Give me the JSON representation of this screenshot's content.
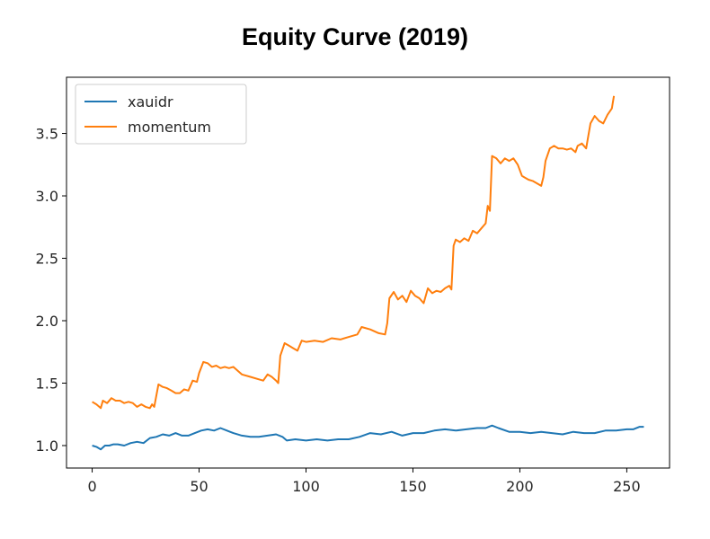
{
  "chart_data": {
    "type": "line",
    "title": "Equity Curve (2019)",
    "xlabel": "",
    "ylabel": "",
    "xlim": [
      -12,
      270
    ],
    "ylim": [
      0.82,
      3.95
    ],
    "xticks": [
      0,
      50,
      100,
      150,
      200,
      250
    ],
    "yticks": [
      1.0,
      1.5,
      2.0,
      2.5,
      3.0,
      3.5
    ],
    "xtick_labels": [
      "0",
      "50",
      "100",
      "150",
      "200",
      "250"
    ],
    "ytick_labels": [
      "1.0",
      "1.5",
      "2.0",
      "2.5",
      "3.0",
      "3.5"
    ],
    "grid": false,
    "legend_position": "top-left",
    "series": [
      {
        "name": "xauidr",
        "color": "#1f77b4",
        "x": [
          0,
          2,
          4,
          6,
          8,
          10,
          12,
          15,
          18,
          21,
          24,
          27,
          30,
          33,
          36,
          39,
          42,
          45,
          48,
          51,
          54,
          57,
          60,
          63,
          66,
          70,
          74,
          78,
          82,
          86,
          89,
          91,
          95,
          100,
          105,
          110,
          115,
          120,
          125,
          130,
          135,
          140,
          145,
          150,
          155,
          160,
          165,
          170,
          175,
          180,
          184,
          187,
          190,
          195,
          200,
          205,
          210,
          215,
          220,
          225,
          230,
          235,
          240,
          245,
          250,
          253,
          256,
          258
        ],
        "y": [
          1.0,
          0.99,
          0.97,
          1.0,
          1.0,
          1.01,
          1.01,
          1.0,
          1.02,
          1.03,
          1.02,
          1.06,
          1.07,
          1.09,
          1.08,
          1.1,
          1.08,
          1.08,
          1.1,
          1.12,
          1.13,
          1.12,
          1.14,
          1.12,
          1.1,
          1.08,
          1.07,
          1.07,
          1.08,
          1.09,
          1.07,
          1.04,
          1.05,
          1.04,
          1.05,
          1.04,
          1.05,
          1.05,
          1.07,
          1.1,
          1.09,
          1.11,
          1.08,
          1.1,
          1.1,
          1.12,
          1.13,
          1.12,
          1.13,
          1.14,
          1.14,
          1.16,
          1.14,
          1.11,
          1.11,
          1.1,
          1.11,
          1.1,
          1.09,
          1.11,
          1.1,
          1.1,
          1.12,
          1.12,
          1.13,
          1.13,
          1.15,
          1.15
        ]
      },
      {
        "name": "momentum",
        "color": "#ff7f0e",
        "x": [
          0,
          2,
          4,
          5,
          7,
          9,
          11,
          13,
          15,
          17,
          19,
          21,
          23,
          25,
          27,
          28,
          29,
          31,
          33,
          35,
          37,
          39,
          41,
          43,
          45,
          47,
          49,
          50,
          52,
          54,
          56,
          58,
          60,
          62,
          64,
          66,
          68,
          70,
          74,
          78,
          80,
          82,
          84,
          86,
          87,
          88,
          90,
          92,
          94,
          96,
          98,
          100,
          104,
          108,
          112,
          116,
          120,
          124,
          126,
          130,
          134,
          137,
          138,
          139,
          141,
          143,
          145,
          147,
          149,
          151,
          153,
          155,
          157,
          159,
          161,
          163,
          165,
          167,
          168,
          169,
          170,
          172,
          174,
          176,
          178,
          180,
          182,
          184,
          185,
          186,
          187,
          189,
          191,
          193,
          195,
          197,
          199,
          201,
          202,
          204,
          206,
          208,
          210,
          211,
          212,
          214,
          216,
          218,
          220,
          222,
          224,
          226,
          227,
          229,
          231,
          233,
          235,
          237,
          239,
          241,
          243,
          244
        ],
        "y": [
          1.35,
          1.33,
          1.3,
          1.36,
          1.34,
          1.38,
          1.36,
          1.36,
          1.34,
          1.35,
          1.34,
          1.31,
          1.33,
          1.31,
          1.3,
          1.33,
          1.31,
          1.49,
          1.47,
          1.46,
          1.44,
          1.42,
          1.42,
          1.45,
          1.44,
          1.52,
          1.51,
          1.58,
          1.67,
          1.66,
          1.63,
          1.64,
          1.62,
          1.63,
          1.62,
          1.63,
          1.6,
          1.57,
          1.55,
          1.53,
          1.52,
          1.57,
          1.55,
          1.52,
          1.5,
          1.72,
          1.82,
          1.8,
          1.78,
          1.76,
          1.84,
          1.83,
          1.84,
          1.83,
          1.86,
          1.85,
          1.87,
          1.89,
          1.95,
          1.93,
          1.9,
          1.89,
          1.98,
          2.18,
          2.23,
          2.17,
          2.2,
          2.15,
          2.24,
          2.2,
          2.18,
          2.14,
          2.26,
          2.22,
          2.24,
          2.23,
          2.26,
          2.28,
          2.25,
          2.6,
          2.65,
          2.63,
          2.66,
          2.64,
          2.72,
          2.7,
          2.74,
          2.78,
          2.92,
          2.88,
          3.32,
          3.3,
          3.26,
          3.3,
          3.28,
          3.3,
          3.25,
          3.16,
          3.15,
          3.13,
          3.12,
          3.1,
          3.08,
          3.15,
          3.28,
          3.38,
          3.4,
          3.38,
          3.38,
          3.37,
          3.38,
          3.35,
          3.4,
          3.42,
          3.38,
          3.58,
          3.64,
          3.6,
          3.58,
          3.65,
          3.7,
          3.8
        ]
      }
    ]
  }
}
